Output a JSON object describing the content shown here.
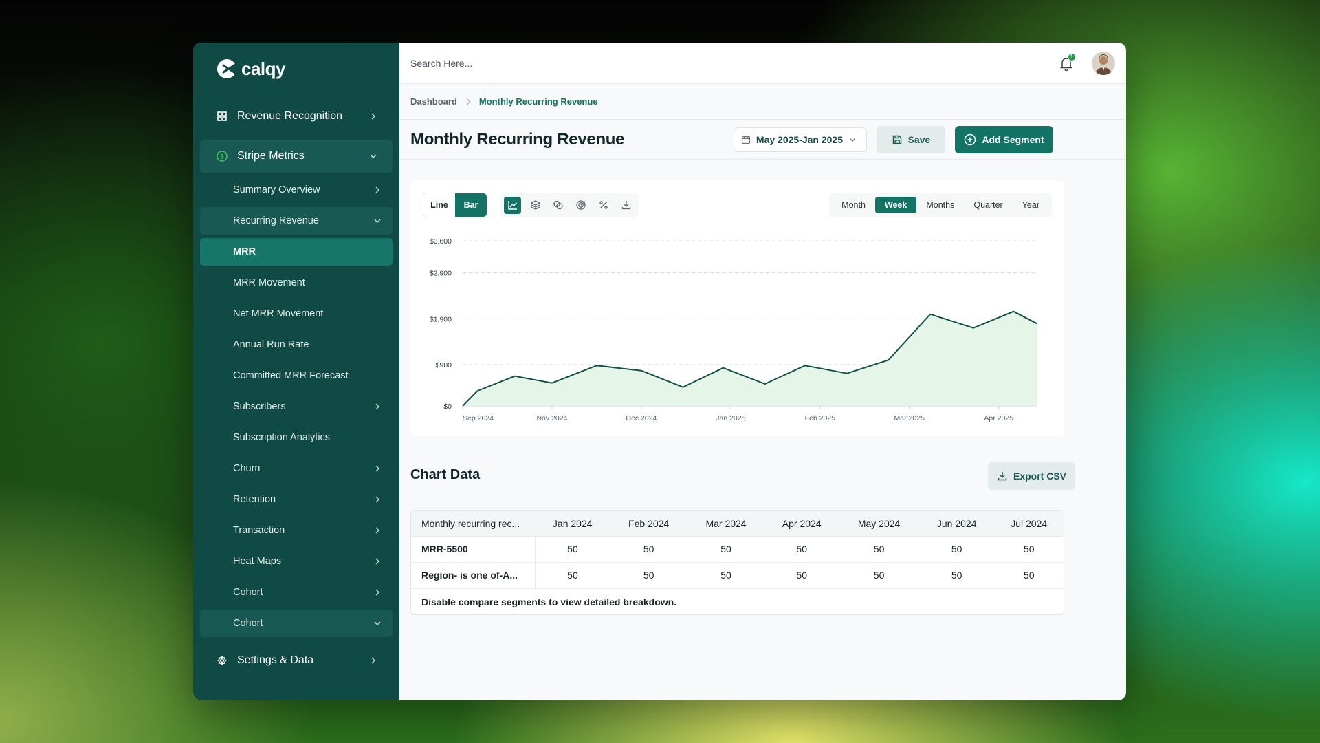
{
  "app": {
    "name": "calqy"
  },
  "sidebar": {
    "top_items": [
      {
        "label": "Revenue Recognition"
      },
      {
        "label": "Stripe Metrics"
      },
      {
        "label": "Settings & Data"
      }
    ],
    "sub_items": [
      {
        "label": "Summary Overview"
      },
      {
        "label": "Recurring Revenue"
      },
      {
        "label": "MRR"
      },
      {
        "label": "MRR Movement"
      },
      {
        "label": "Net MRR Movement"
      },
      {
        "label": "Annual Run Rate"
      },
      {
        "label": "Committed MRR Forecast"
      },
      {
        "label": "Subscribers"
      },
      {
        "label": "Subscription Analytics"
      },
      {
        "label": "Churn"
      },
      {
        "label": "Retention"
      },
      {
        "label": "Transaction"
      },
      {
        "label": "Heat Maps"
      },
      {
        "label": "Cohort"
      },
      {
        "label": "Cohort"
      }
    ]
  },
  "topbar": {
    "search_placeholder": "Search Here...",
    "notification_count": "1"
  },
  "breadcrumb": {
    "root": "Dashboard",
    "current": "Monthly Recurring Revenue"
  },
  "header": {
    "title": "Monthly Recurring Revenue",
    "date_range": "May 2025-Jan 2025",
    "save_label": "Save",
    "add_segment_label": "Add Segment"
  },
  "chart_controls": {
    "chart_types": [
      "Line",
      "Bar"
    ],
    "periods": [
      "Month",
      "Week",
      "Months",
      "Quarter",
      "Year"
    ],
    "selected_period": "Week"
  },
  "chart_data": {
    "type": "area",
    "ylim": [
      0,
      3600
    ],
    "y_ticks": [
      "$3,600",
      "$2,900",
      "$1,900",
      "$900",
      "$0"
    ],
    "y_tick_values": [
      3600,
      2900,
      1900,
      900,
      0
    ],
    "x_ticks": [
      "Sep 2024",
      "Nov 2024",
      "Dec 2024",
      "Jan 2025",
      "Feb 2025",
      "Mar 2025",
      "Apr 2025"
    ],
    "x_tick_index": [
      0,
      6,
      12,
      18,
      24,
      30,
      36
    ],
    "series": [
      {
        "values": [
          0,
          330,
          650,
          500,
          880,
          770,
          410,
          830,
          480,
          880,
          710,
          1000,
          2000,
          1700,
          2060,
          1790
        ]
      }
    ],
    "series_index": [
      0,
      1,
      3.5,
      6,
      9,
      12,
      14.8,
      17.5,
      20.3,
      23,
      25.8,
      28.6,
      31.4,
      34.3,
      37,
      38.6
    ],
    "x_index_max": 38.6,
    "grid": true,
    "accent": "#13524a",
    "fill": "#e4f6e7"
  },
  "table": {
    "section_title": "Chart Data",
    "export_label": "Export CSV",
    "columns": [
      "Monthly recurring rec...",
      "Jan 2024",
      "Feb 2024",
      "Mar 2024",
      "Apr 2024",
      "May 2024",
      "Jun 2024",
      "Jul 2024"
    ],
    "rows": [
      {
        "name": "MRR-5500",
        "values": [
          "50",
          "50",
          "50",
          "50",
          "50",
          "50",
          "50"
        ]
      },
      {
        "name": "Region- is one of-A...",
        "values": [
          "50",
          "50",
          "50",
          "50",
          "50",
          "50",
          "50"
        ]
      }
    ],
    "note": "Disable compare segments to view detailed breakdown."
  }
}
